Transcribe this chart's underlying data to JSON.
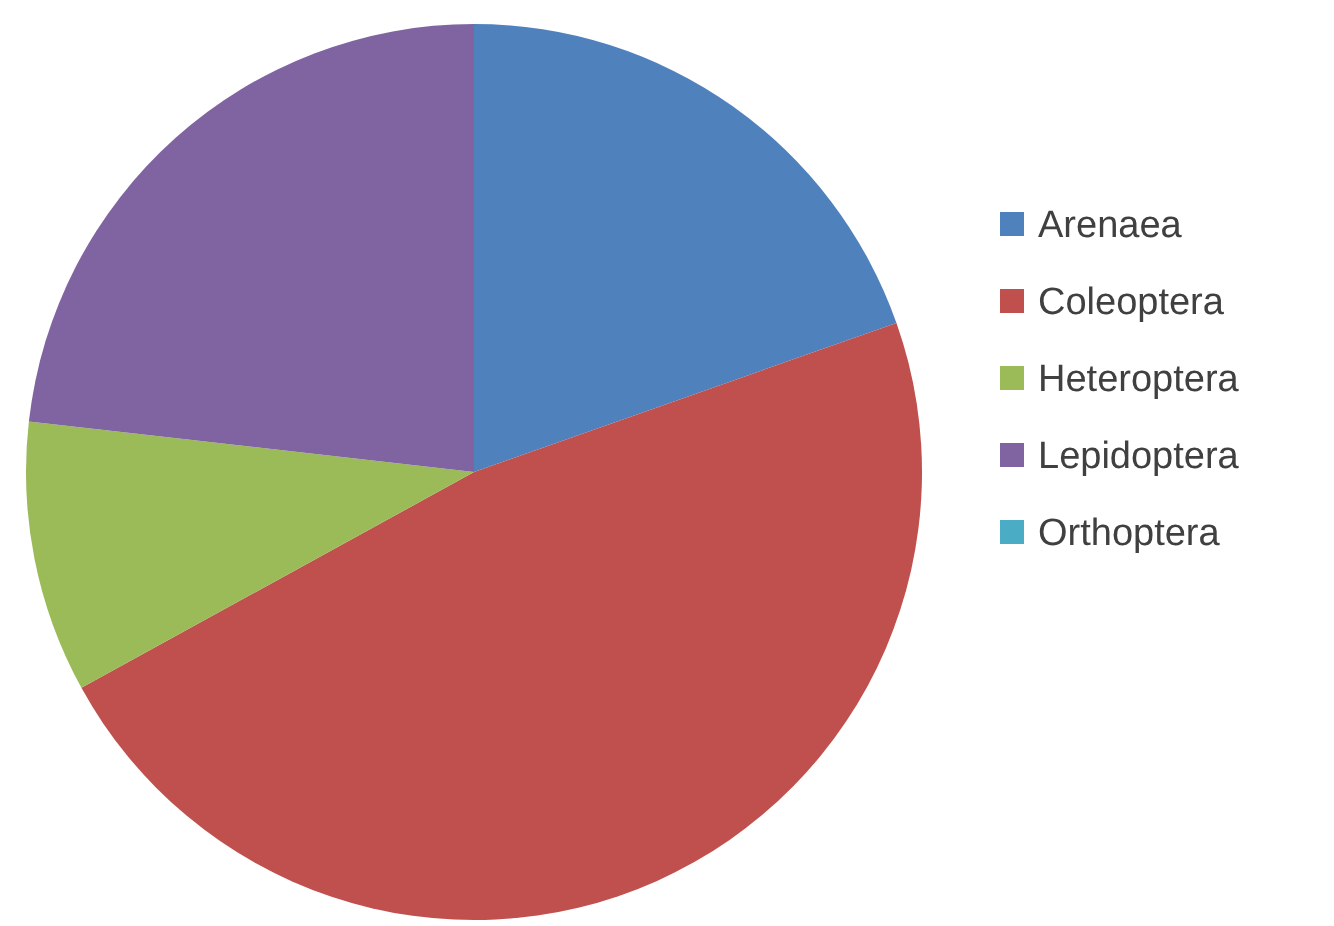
{
  "chart_data": {
    "type": "pie",
    "categories": [
      "Arenaea",
      "Coleoptera",
      "Heteroptera",
      "Lepidoptera",
      "Orthoptera"
    ],
    "values": [
      19.6,
      47.4,
      9.8,
      23.2,
      0
    ],
    "colors": [
      "#4f81bd",
      "#c0504d",
      "#9bbb59",
      "#8064a2",
      "#4bacc6"
    ],
    "legend": "right"
  }
}
